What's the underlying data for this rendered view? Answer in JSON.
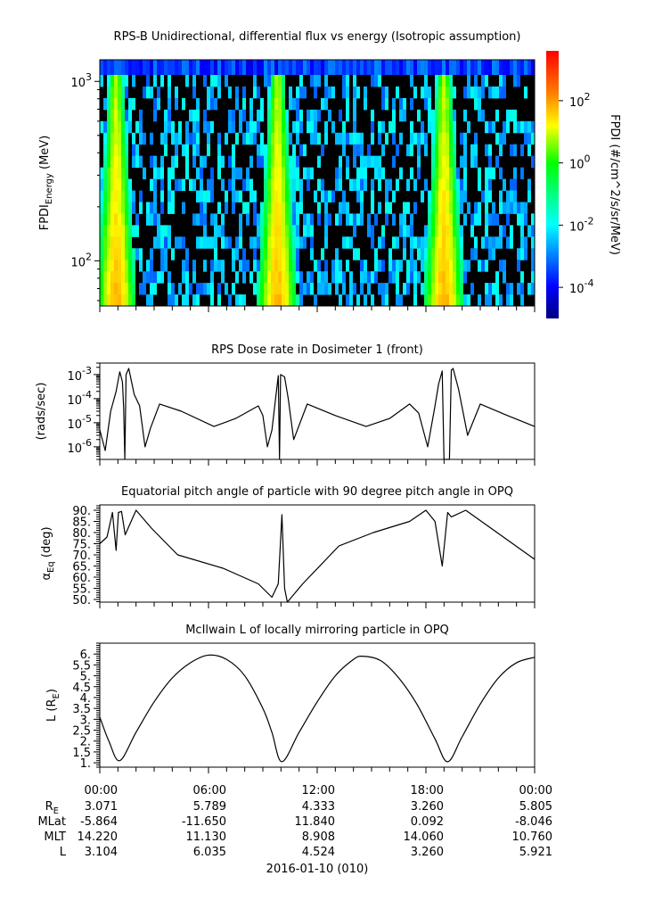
{
  "chart_data": [
    {
      "type": "heatmap",
      "title": "RPS-B  Unidirectional, differential flux vs energy (Isotropic assumption)",
      "ylabel": {
        "main": "FPDI",
        "sub": "Energy",
        "unit": " (MeV)"
      },
      "yscale": "log",
      "ylim": [
        56,
        1320
      ],
      "yticks": [
        {
          "value": 100,
          "base": "10",
          "exp": "2"
        },
        {
          "value": 1000,
          "base": "10",
          "exp": "3"
        }
      ],
      "xlim_hours": [
        0,
        24
      ],
      "belt_crossings_hours": [
        0.9,
        9.8,
        19.0
      ],
      "colorbar": {
        "label": "FPDI (#/cm^2/s/sr/MeV)",
        "scale": "log",
        "zlim": [
          1e-05,
          4000
        ],
        "ticks": [
          {
            "value": 100,
            "base": "10",
            "exp": "2"
          },
          {
            "value": 1,
            "base": "10",
            "exp": "0"
          },
          {
            "value": 0.01,
            "base": "10",
            "exp": "-2"
          },
          {
            "value": 0.0001,
            "base": "10",
            "exp": "-4"
          }
        ],
        "colormap": [
          "#00007f",
          "#0000ff",
          "#00ffff",
          "#00ff00",
          "#ffff00",
          "#ff8000",
          "#ff0000"
        ]
      }
    },
    {
      "type": "line",
      "title": "RPS  Dose rate in Dosimeter 1 (front)",
      "ylabel": "(rads/sec)",
      "yscale": "log",
      "ylim": [
        3e-07,
        0.003
      ],
      "yticks": [
        {
          "value": 0.001,
          "base": "10",
          "exp": "-3"
        },
        {
          "value": 0.0001,
          "base": "10",
          "exp": "-4"
        },
        {
          "value": 1e-05,
          "base": "10",
          "exp": "-5"
        },
        {
          "value": 1e-06,
          "base": "10",
          "exp": "-6"
        }
      ],
      "x_hours": [
        0,
        0.3,
        0.6,
        0.9,
        1.1,
        1.25,
        1.32,
        1.38,
        1.45,
        1.6,
        1.9,
        2.2,
        2.5,
        2.8,
        3.3,
        4.5,
        6.3,
        7.5,
        8.75,
        9.0,
        9.25,
        9.5,
        9.85,
        9.92,
        9.98,
        10.2,
        10.4,
        10.7,
        11.45,
        13.0,
        14.7,
        16.0,
        17.1,
        17.6,
        18.1,
        18.5,
        18.7,
        18.9,
        19.0,
        19.05,
        19.3,
        19.4,
        19.5,
        19.8,
        20.3,
        21.0,
        22.5,
        24.0
      ],
      "y": [
        5e-06,
        7e-07,
        3e-05,
        0.0002,
        0.0013,
        0.0005,
        4e-05,
        2e-07,
        0.001,
        0.0018,
        0.00015,
        5e-05,
        1e-06,
        6e-06,
        6e-05,
        3e-05,
        7e-06,
        1.5e-05,
        5e-05,
        2e-05,
        1e-06,
        5e-06,
        0.0009,
        2e-07,
        0.001,
        0.0008,
        0.0001,
        2e-06,
        6e-05,
        2e-05,
        7e-06,
        1.5e-05,
        6e-05,
        2.5e-05,
        1e-06,
        5e-05,
        0.0004,
        0.0014,
        2e-07,
        2e-07,
        2e-07,
        0.0015,
        0.0018,
        0.00025,
        3e-06,
        6e-05,
        2e-05,
        7e-06
      ]
    },
    {
      "type": "line",
      "title": "Equatorial pitch angle of particle with 90 degree pitch angle in OPQ",
      "ylabel": {
        "main": "α",
        "sub": "Eq",
        "unit": " (deg)"
      },
      "ylim": [
        48.8,
        92.4
      ],
      "yticks": [
        "90.",
        "85.",
        "80.",
        "75.",
        "70.",
        "65.",
        "60.",
        "55.",
        "50."
      ],
      "x_hours": [
        0,
        0.4,
        0.7,
        0.9,
        1.03,
        1.2,
        1.4,
        2.0,
        2.85,
        4.3,
        6.8,
        8.75,
        9.5,
        9.85,
        10.05,
        10.2,
        10.35,
        11.2,
        13.2,
        15.1,
        17.1,
        18.0,
        18.5,
        18.9,
        19.2,
        19.4,
        20.2,
        22.1,
        24.0
      ],
      "y": [
        75,
        78,
        89,
        72,
        89,
        89.5,
        79,
        90,
        82,
        70,
        64,
        57,
        51,
        57,
        88,
        55,
        48.8,
        57,
        74,
        80,
        85,
        90,
        85,
        65,
        89,
        87,
        90,
        79,
        68
      ]
    },
    {
      "type": "line",
      "title": "McIlwain L of locally mirroring particle in OPQ",
      "ylabel": {
        "main": "L (R",
        "sub": "E",
        "unit": ")"
      },
      "ylim": [
        0.8,
        6.5
      ],
      "yticks": [
        "6.",
        "5.5",
        "5.",
        "4.5",
        "4.",
        "3.5",
        "3.",
        "2.5",
        "2.",
        "1.5",
        "1."
      ],
      "x_hours": [
        0,
        0.5,
        1.1,
        2,
        3,
        4,
        5,
        6,
        7,
        8,
        9,
        9.5,
        10.05,
        11,
        12,
        13,
        14,
        14.5,
        15.5,
        16.5,
        17.5,
        18.5,
        19.2,
        20,
        21,
        22,
        23,
        24
      ],
      "y": [
        3.1,
        2.0,
        1.1,
        2.4,
        3.8,
        4.9,
        5.6,
        5.95,
        5.75,
        5.0,
        3.5,
        2.4,
        1.05,
        2.4,
        3.8,
        5.0,
        5.75,
        5.9,
        5.7,
        4.9,
        3.7,
        2.1,
        1.05,
        2.2,
        3.7,
        4.9,
        5.6,
        5.85
      ]
    }
  ],
  "ephemeris": {
    "time_labels": [
      "00:00",
      "06:00",
      "12:00",
      "18:00",
      "00:00"
    ],
    "rows": [
      {
        "label": "R",
        "label_sub": "E",
        "values": [
          "3.071",
          "5.789",
          "4.333",
          "3.260",
          "5.805"
        ]
      },
      {
        "label": "MLat",
        "label_sub": "",
        "values": [
          "-5.864",
          "-11.650",
          "11.840",
          "0.092",
          "-8.046"
        ]
      },
      {
        "label": "MLT",
        "label_sub": "",
        "values": [
          "14.220",
          "11.130",
          "8.908",
          "14.060",
          "10.760"
        ]
      },
      {
        "label": "L",
        "label_sub": "",
        "values": [
          "3.104",
          "6.035",
          "4.524",
          "3.260",
          "5.921"
        ]
      }
    ],
    "date": "2016-01-10 (010)"
  }
}
